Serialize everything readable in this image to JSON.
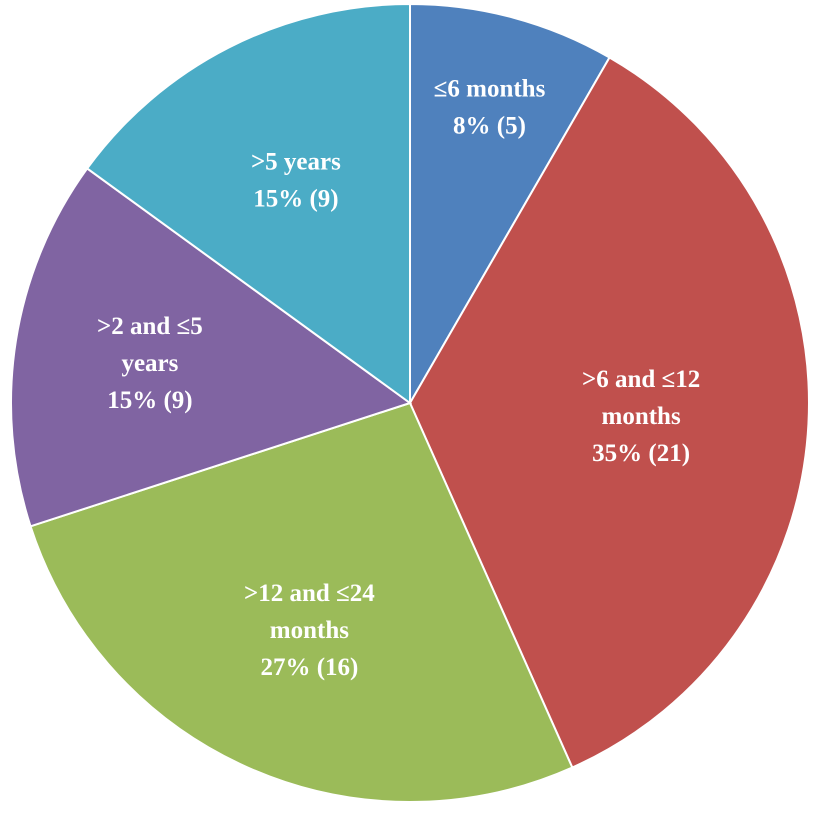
{
  "chart_data": {
    "type": "pie",
    "title": "",
    "slices": [
      {
        "name": "≤6 months",
        "value": 5,
        "percent": "8%",
        "color": "#4F81BD",
        "label_lines": [
          "≤6 months",
          "8% (5)"
        ]
      },
      {
        "name": ">6 and ≤12 months",
        "value": 21,
        "percent": "35%",
        "color": "#C0504D",
        "label_lines": [
          ">6 and ≤12",
          "months",
          "35% (21)"
        ]
      },
      {
        "name": ">12 and ≤24 months",
        "value": 16,
        "percent": "27%",
        "color": "#9BBB59",
        "label_lines": [
          ">12 and ≤24",
          "months",
          "27% (16)"
        ]
      },
      {
        "name": ">2 and ≤5 years",
        "value": 9,
        "percent": "15%",
        "color": "#8064A2",
        "label_lines": [
          ">2 and ≤5",
          "years",
          "15% (9)"
        ]
      },
      {
        "name": ">5 years",
        "value": 9,
        "percent": "15%",
        "color": "#4BACC6",
        "label_lines": [
          ">5 years",
          "15% (9)"
        ]
      }
    ],
    "start_angle": "12 o'clock",
    "direction": "clockwise",
    "legend": "none"
  }
}
